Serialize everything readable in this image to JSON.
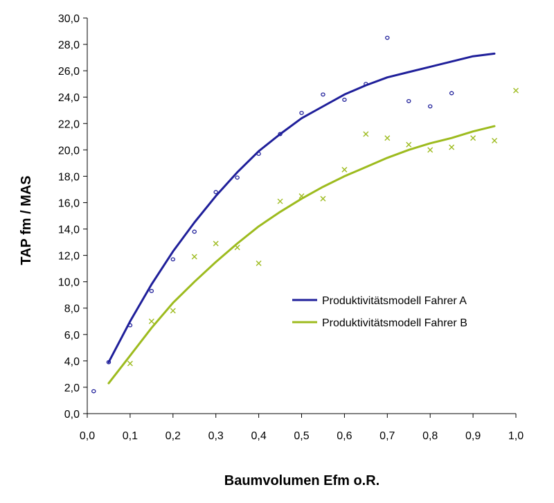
{
  "chart_data": {
    "type": "scatter",
    "title": "",
    "xlabel": "Baumvolumen Efm o.R.",
    "ylabel": "TAP fm / MAS",
    "xlim": [
      0,
      1
    ],
    "ylim": [
      0,
      30
    ],
    "x_ticks": [
      "0,0",
      "0,1",
      "0,2",
      "0,3",
      "0,4",
      "0,5",
      "0,6",
      "0,7",
      "0,8",
      "0,9",
      "1,0"
    ],
    "y_ticks": [
      "0,0",
      "2,0",
      "4,0",
      "6,0",
      "8,0",
      "10,0",
      "12,0",
      "14,0",
      "16,0",
      "18,0",
      "20,0",
      "22,0",
      "24,0",
      "26,0",
      "28,0",
      "30,0"
    ],
    "grid": false,
    "legend_position": "center-right",
    "series": [
      {
        "name": "Produktivitätsmodell Fahrer A",
        "color": "#1f1f9a",
        "marker": "circle",
        "points": [
          [
            0.015,
            1.7
          ],
          [
            0.05,
            3.9
          ],
          [
            0.1,
            6.7
          ],
          [
            0.15,
            9.3
          ],
          [
            0.2,
            11.7
          ],
          [
            0.25,
            13.8
          ],
          [
            0.3,
            16.8
          ],
          [
            0.35,
            17.9
          ],
          [
            0.4,
            19.7
          ],
          [
            0.45,
            21.2
          ],
          [
            0.5,
            22.8
          ],
          [
            0.55,
            24.2
          ],
          [
            0.6,
            23.8
          ],
          [
            0.65,
            25.0
          ],
          [
            0.7,
            28.5
          ],
          [
            0.75,
            23.7
          ],
          [
            0.8,
            23.3
          ],
          [
            0.85,
            24.3
          ]
        ],
        "curve": [
          [
            0.05,
            3.9
          ],
          [
            0.1,
            7.0
          ],
          [
            0.15,
            9.8
          ],
          [
            0.2,
            12.3
          ],
          [
            0.25,
            14.5
          ],
          [
            0.3,
            16.5
          ],
          [
            0.35,
            18.3
          ],
          [
            0.4,
            19.9
          ],
          [
            0.45,
            21.2
          ],
          [
            0.5,
            22.4
          ],
          [
            0.55,
            23.3
          ],
          [
            0.6,
            24.2
          ],
          [
            0.65,
            24.9
          ],
          [
            0.7,
            25.5
          ],
          [
            0.75,
            25.9
          ],
          [
            0.8,
            26.3
          ],
          [
            0.85,
            26.7
          ],
          [
            0.9,
            27.1
          ],
          [
            0.95,
            27.3
          ]
        ]
      },
      {
        "name": "Produktivitätsmodell Fahrer B",
        "color": "#9dbb1e",
        "marker": "x",
        "points": [
          [
            0.1,
            3.8
          ],
          [
            0.15,
            7.0
          ],
          [
            0.2,
            7.8
          ],
          [
            0.25,
            11.9
          ],
          [
            0.3,
            12.9
          ],
          [
            0.35,
            12.6
          ],
          [
            0.4,
            11.4
          ],
          [
            0.45,
            16.1
          ],
          [
            0.5,
            16.5
          ],
          [
            0.55,
            16.3
          ],
          [
            0.6,
            18.5
          ],
          [
            0.65,
            21.2
          ],
          [
            0.7,
            20.9
          ],
          [
            0.75,
            20.4
          ],
          [
            0.8,
            20.0
          ],
          [
            0.85,
            20.2
          ],
          [
            0.9,
            20.9
          ],
          [
            0.95,
            20.7
          ],
          [
            1.0,
            24.5
          ]
        ],
        "curve": [
          [
            0.05,
            2.3
          ],
          [
            0.1,
            4.4
          ],
          [
            0.15,
            6.5
          ],
          [
            0.2,
            8.4
          ],
          [
            0.25,
            10.0
          ],
          [
            0.3,
            11.5
          ],
          [
            0.35,
            12.9
          ],
          [
            0.4,
            14.2
          ],
          [
            0.45,
            15.3
          ],
          [
            0.5,
            16.3
          ],
          [
            0.55,
            17.2
          ],
          [
            0.6,
            18.0
          ],
          [
            0.65,
            18.7
          ],
          [
            0.7,
            19.4
          ],
          [
            0.75,
            20.0
          ],
          [
            0.8,
            20.5
          ],
          [
            0.85,
            20.9
          ],
          [
            0.9,
            21.4
          ],
          [
            0.95,
            21.8
          ]
        ]
      }
    ]
  }
}
